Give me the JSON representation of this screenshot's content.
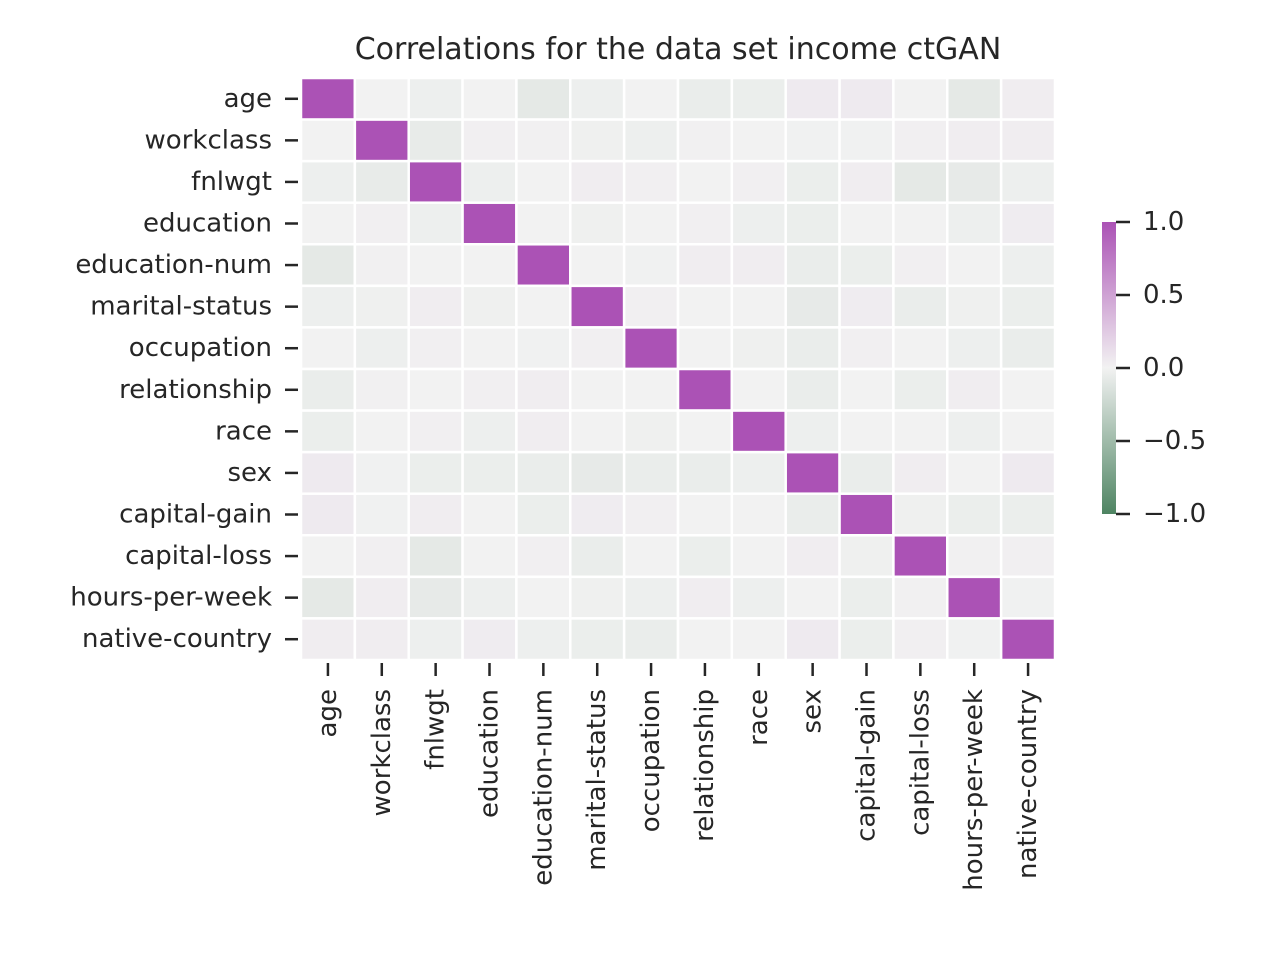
{
  "chart_data": {
    "type": "heatmap",
    "title": "Correlations for the data set income ctGAN",
    "xlabel": "",
    "ylabel": "",
    "labels": [
      "age",
      "workclass",
      "fnlwgt",
      "education",
      "education-num",
      "marital-status",
      "occupation",
      "relationship",
      "race",
      "sex",
      "capital-gain",
      "capital-loss",
      "hours-per-week",
      "native-country"
    ],
    "values": [
      [
        1.0,
        0.0,
        -0.03,
        0.0,
        -0.08,
        -0.03,
        0.0,
        -0.05,
        -0.04,
        0.05,
        0.05,
        0.0,
        -0.08,
        0.03
      ],
      [
        0.0,
        1.0,
        -0.06,
        0.02,
        0.01,
        -0.02,
        -0.03,
        0.01,
        0.0,
        -0.01,
        -0.01,
        0.02,
        0.03,
        0.03
      ],
      [
        -0.03,
        -0.06,
        1.0,
        -0.03,
        0.0,
        0.03,
        0.02,
        0.0,
        0.02,
        -0.04,
        0.03,
        -0.08,
        -0.07,
        -0.03
      ],
      [
        0.0,
        0.02,
        -0.03,
        1.0,
        0.0,
        -0.02,
        0.0,
        0.02,
        -0.03,
        -0.04,
        0.0,
        0.0,
        -0.03,
        0.04
      ],
      [
        -0.08,
        0.01,
        0.0,
        0.0,
        1.0,
        0.0,
        -0.01,
        0.03,
        0.03,
        -0.05,
        -0.04,
        0.02,
        0.0,
        -0.03
      ],
      [
        -0.03,
        -0.02,
        0.03,
        -0.02,
        0.0,
        1.0,
        0.02,
        0.0,
        0.0,
        -0.07,
        0.04,
        -0.05,
        -0.02,
        -0.04
      ],
      [
        0.0,
        -0.03,
        0.02,
        0.0,
        -0.01,
        0.02,
        1.0,
        0.0,
        -0.02,
        -0.05,
        0.02,
        0.0,
        -0.03,
        -0.05
      ],
      [
        -0.05,
        0.01,
        0.0,
        0.02,
        0.03,
        0.0,
        0.0,
        1.0,
        0.0,
        -0.05,
        0.0,
        -0.04,
        0.03,
        0.0
      ],
      [
        -0.04,
        0.0,
        0.02,
        -0.03,
        0.03,
        0.0,
        -0.02,
        0.0,
        1.0,
        -0.03,
        0.0,
        0.0,
        -0.03,
        0.0
      ],
      [
        0.05,
        -0.01,
        -0.04,
        -0.04,
        -0.05,
        -0.07,
        -0.05,
        -0.05,
        -0.03,
        1.0,
        -0.05,
        0.03,
        0.0,
        0.05
      ],
      [
        0.05,
        -0.01,
        0.03,
        0.0,
        -0.04,
        0.04,
        0.02,
        0.0,
        0.0,
        -0.05,
        1.0,
        -0.02,
        -0.04,
        -0.04
      ],
      [
        0.0,
        0.02,
        -0.08,
        0.0,
        0.02,
        -0.05,
        0.0,
        -0.04,
        0.0,
        0.03,
        -0.02,
        1.0,
        0.01,
        0.02
      ],
      [
        -0.08,
        0.03,
        -0.07,
        -0.03,
        0.0,
        -0.02,
        -0.03,
        0.03,
        -0.03,
        0.0,
        -0.04,
        0.01,
        1.0,
        -0.01
      ],
      [
        0.03,
        0.03,
        -0.03,
        0.04,
        -0.03,
        -0.04,
        -0.05,
        0.0,
        0.0,
        0.05,
        -0.04,
        0.02,
        -0.01,
        1.0
      ]
    ],
    "colorbar": {
      "ticks": [
        "1.0",
        "0.5",
        "0.0",
        "−0.5",
        "−1.0"
      ],
      "tick_values": [
        1.0,
        0.5,
        0.0,
        -0.5,
        -1.0
      ],
      "range": [
        -1.0,
        1.0
      ]
    },
    "colors": {
      "positive": "#ab52b5",
      "neutral": "#f2f2f2",
      "negative": "#4e8462",
      "cell_border": "#ffffff",
      "text": "#262626"
    },
    "grid": false
  }
}
